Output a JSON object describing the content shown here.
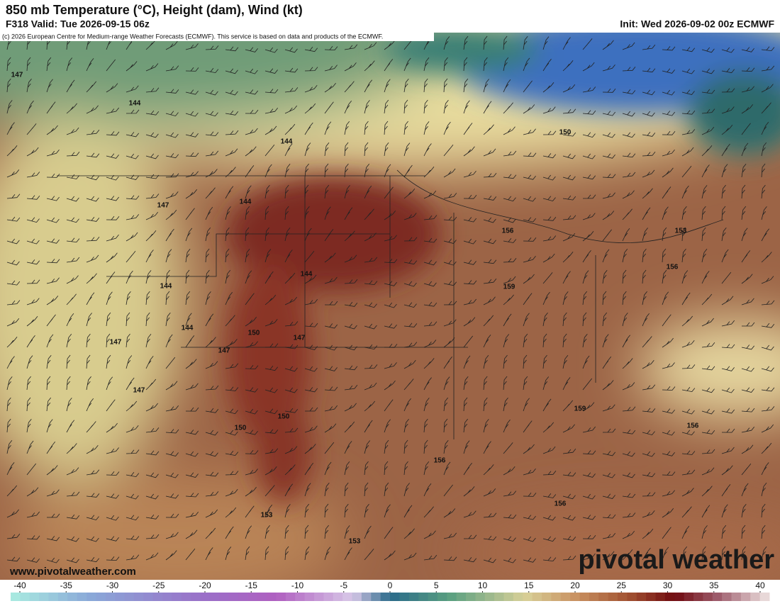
{
  "header": {
    "title": "850 mb Temperature (°C), Height (dam), Wind (kt)",
    "valid": "F318 Valid: Tue 2026-09-15 06z",
    "init": "Init: Wed 2026-09-02 00z ECMWF",
    "credit": "(c) 2026 European Centre for Medium-range Weather Forecasts (ECMWF). This service is based on data and products of the ECMWF."
  },
  "map": {
    "contour_labels": [
      147,
      144,
      144,
      147,
      144,
      144,
      144,
      144,
      147,
      147,
      147,
      147,
      150,
      150,
      150,
      153,
      153,
      156,
      156,
      153,
      159,
      159,
      156,
      156,
      156,
      150
    ]
  },
  "colorbar": {
    "ticks": [
      -40,
      -35,
      -30,
      -25,
      -20,
      -15,
      -10,
      -5,
      0,
      5,
      10,
      15,
      20,
      25,
      30,
      35,
      40
    ]
  },
  "footer": {
    "url": "www.pivotalweather.com",
    "logo": "pivotal weather"
  }
}
